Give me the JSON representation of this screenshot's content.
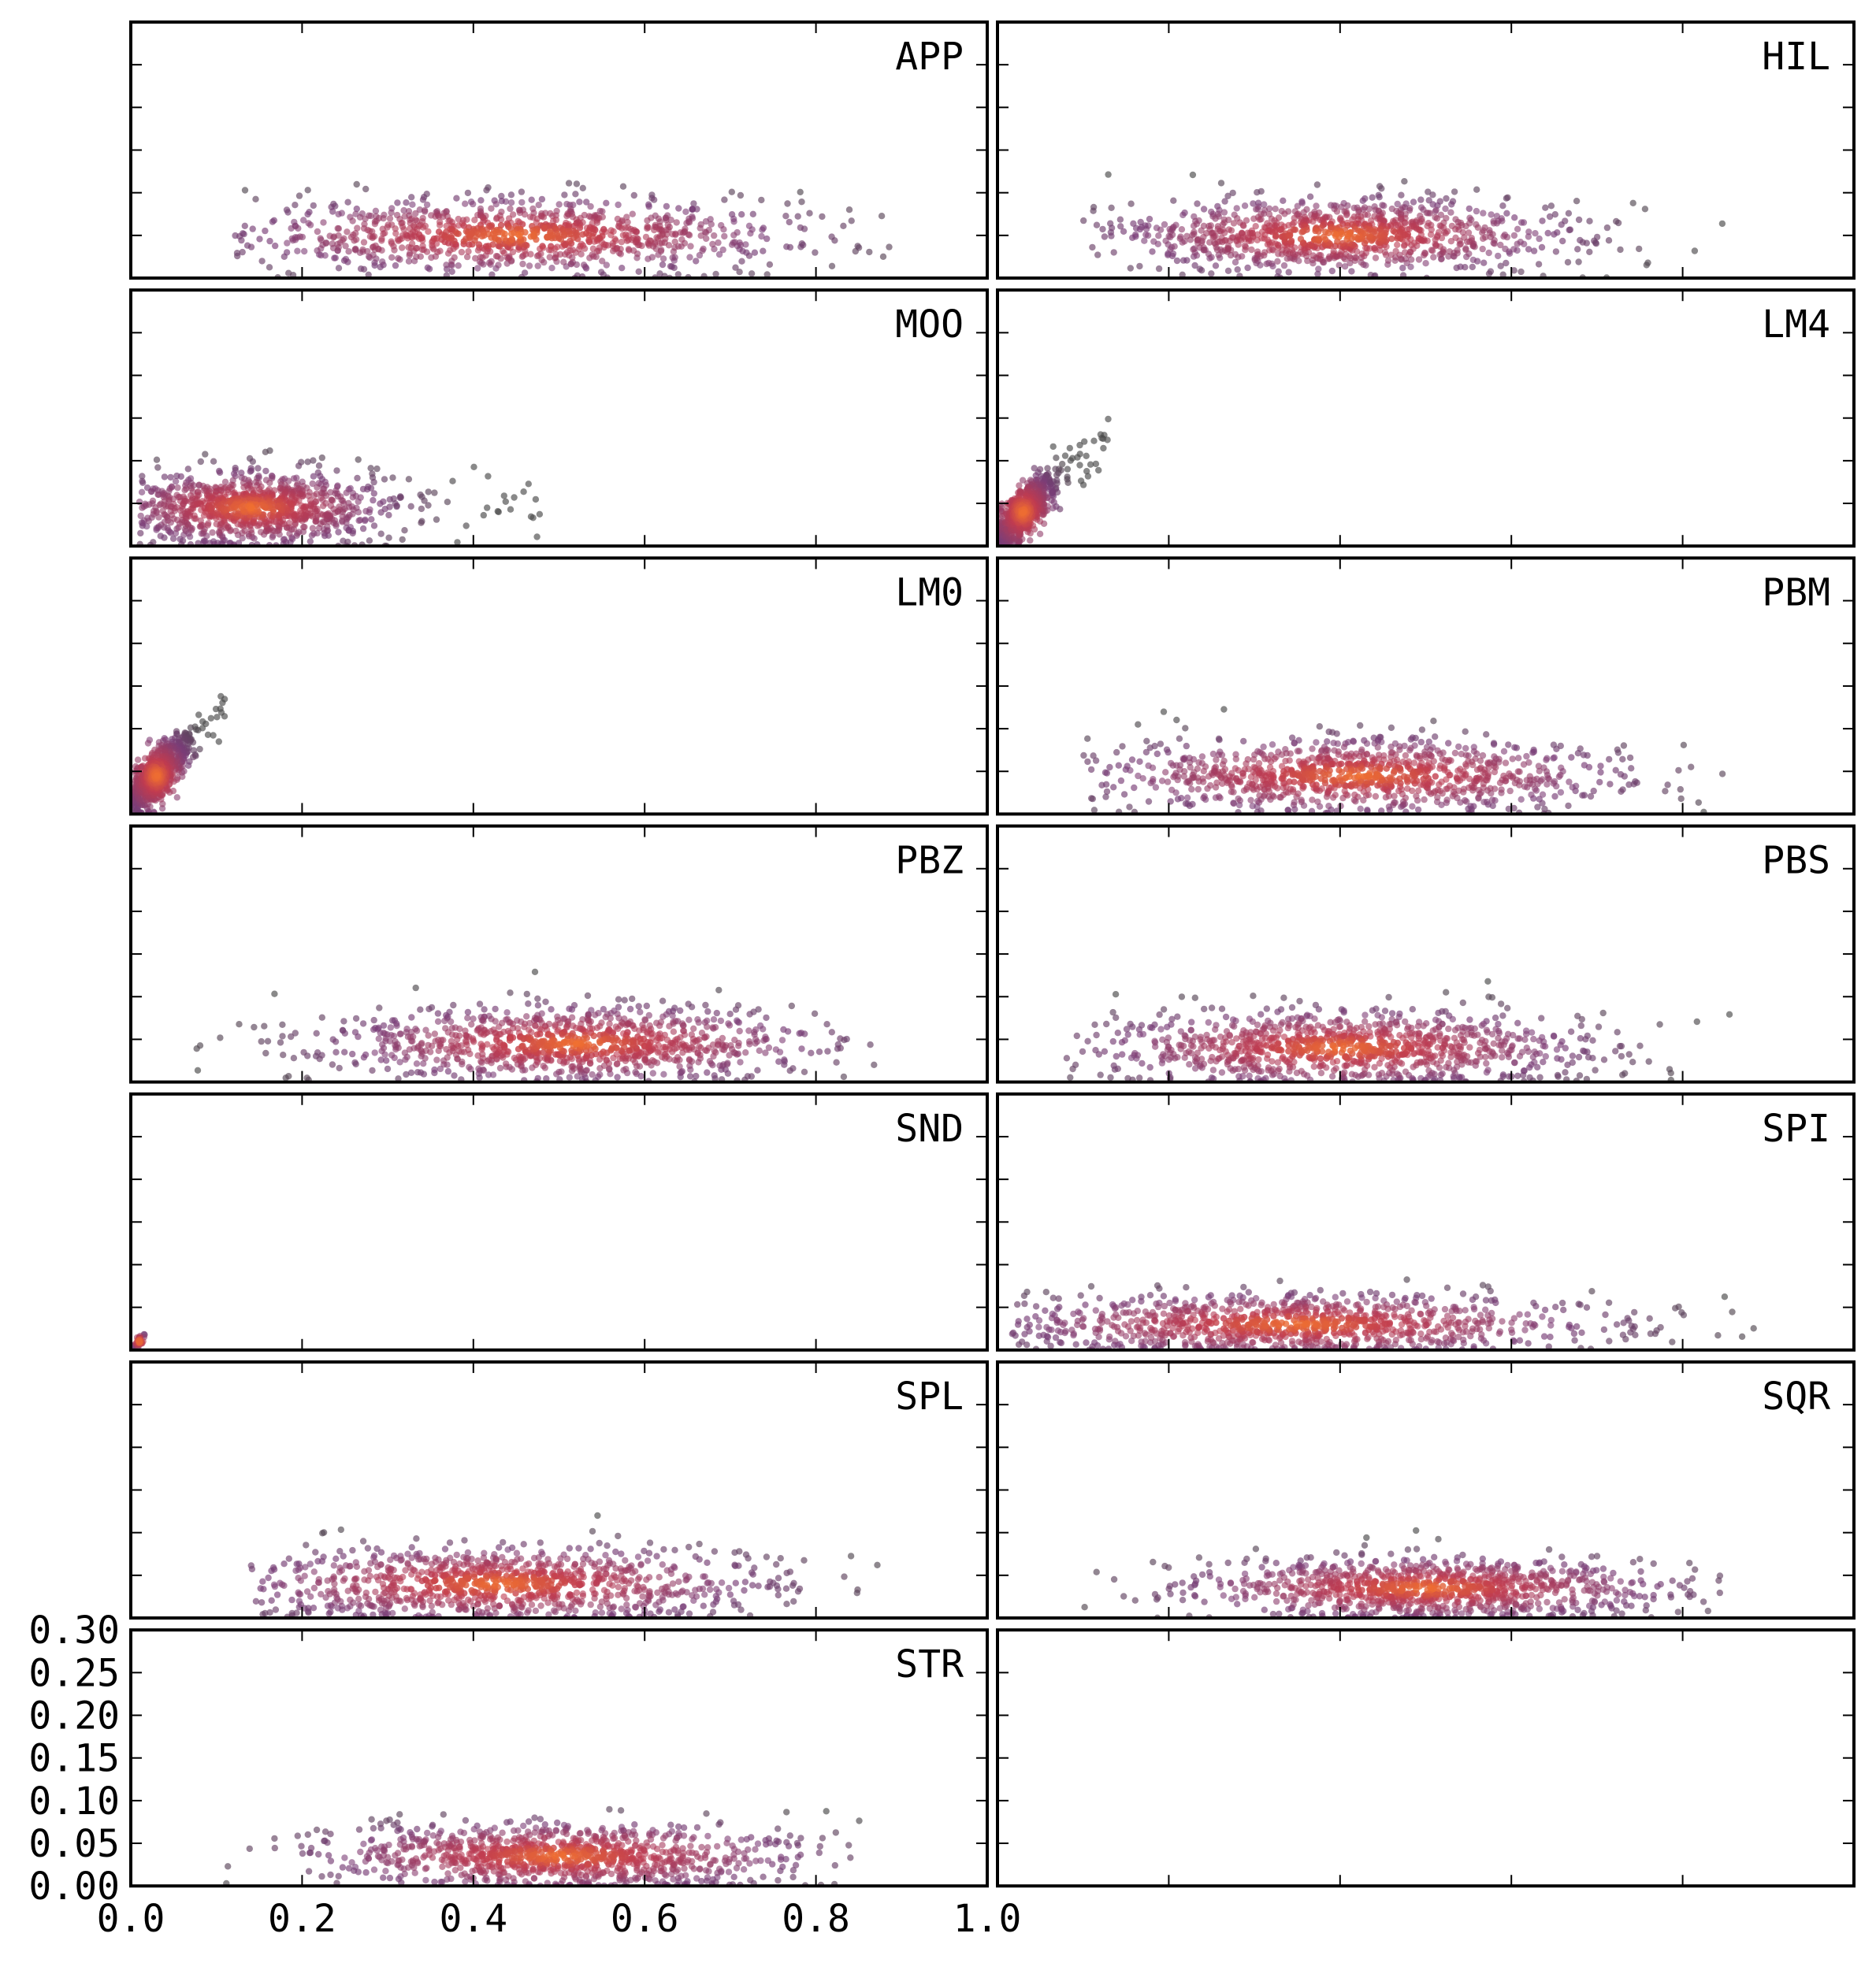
{
  "chart_data": {
    "type": "scatter",
    "layout": {
      "rows": 7,
      "cols": 2
    },
    "xlim": [
      0.0,
      1.0
    ],
    "ylim": [
      0.0,
      0.3
    ],
    "xticks": [
      0.0,
      0.2,
      0.4,
      0.6,
      0.8,
      1.0
    ],
    "yticks": [
      0.0,
      0.05,
      0.1,
      0.15,
      0.2,
      0.25,
      0.3
    ],
    "xtick_labels": [
      "0.0",
      "0.2",
      "0.4",
      "0.6",
      "0.8",
      "1.0"
    ],
    "ytick_labels": [
      "0.00",
      "0.05",
      "0.10",
      "0.15",
      "0.20",
      "0.25",
      "0.30"
    ],
    "colors": {
      "dense": "#f07030",
      "mid": "#c03c50",
      "sparse": "#7a3d78",
      "outlier": "#4a4a4a"
    },
    "panels": [
      {
        "label": "APP",
        "points": 1000,
        "center_x": 0.45,
        "spread_x": 0.16,
        "x_range": [
          0.12,
          0.9
        ],
        "center_y": 0.05,
        "spread_y": 0.022
      },
      {
        "label": "HIL",
        "points": 1000,
        "center_x": 0.4,
        "spread_x": 0.13,
        "x_range": [
          0.1,
          0.85
        ],
        "center_y": 0.05,
        "spread_y": 0.022
      },
      {
        "label": "MOO",
        "points": 1000,
        "center_x": 0.14,
        "spread_x": 0.08,
        "x_range": [
          0.01,
          0.49
        ],
        "center_y": 0.045,
        "spread_y": 0.022
      },
      {
        "label": "LM4",
        "points": 700,
        "center_x": 0.03,
        "spread_x": 0.02,
        "x_range": [
          0.0,
          0.13
        ],
        "center_y": 0.04,
        "spread_y": 0.025
      },
      {
        "label": "LM0",
        "points": 700,
        "center_x": 0.03,
        "spread_x": 0.02,
        "x_range": [
          0.0,
          0.11
        ],
        "center_y": 0.045,
        "spread_y": 0.025
      },
      {
        "label": "PBM",
        "points": 1000,
        "center_x": 0.42,
        "spread_x": 0.15,
        "x_range": [
          0.1,
          0.85
        ],
        "center_y": 0.045,
        "spread_y": 0.022
      },
      {
        "label": "PBZ",
        "points": 1000,
        "center_x": 0.52,
        "spread_x": 0.14,
        "x_range": [
          0.02,
          0.87
        ],
        "center_y": 0.045,
        "spread_y": 0.022
      },
      {
        "label": "PBS",
        "points": 1000,
        "center_x": 0.4,
        "spread_x": 0.14,
        "x_range": [
          0.08,
          0.9
        ],
        "center_y": 0.04,
        "spread_y": 0.022
      },
      {
        "label": "SND",
        "points": 40,
        "center_x": 0.01,
        "spread_x": 0.005,
        "x_range": [
          0.0,
          0.02
        ],
        "center_y": 0.01,
        "spread_y": 0.005
      },
      {
        "label": "SPI",
        "points": 1000,
        "center_x": 0.35,
        "spread_x": 0.17,
        "x_range": [
          0.0,
          0.9
        ],
        "center_y": 0.03,
        "spread_y": 0.018
      },
      {
        "label": "SPL",
        "points": 1000,
        "center_x": 0.43,
        "spread_x": 0.15,
        "x_range": [
          0.14,
          0.88
        ],
        "center_y": 0.04,
        "spread_y": 0.022
      },
      {
        "label": "SQR",
        "points": 1000,
        "center_x": 0.5,
        "spread_x": 0.14,
        "x_range": [
          0.1,
          0.85
        ],
        "center_y": 0.035,
        "spread_y": 0.018
      },
      {
        "label": "STR",
        "points": 1000,
        "center_x": 0.5,
        "spread_x": 0.14,
        "x_range": [
          0.1,
          0.86
        ],
        "center_y": 0.035,
        "spread_y": 0.02
      },
      {
        "label": "",
        "points": 0
      }
    ]
  }
}
